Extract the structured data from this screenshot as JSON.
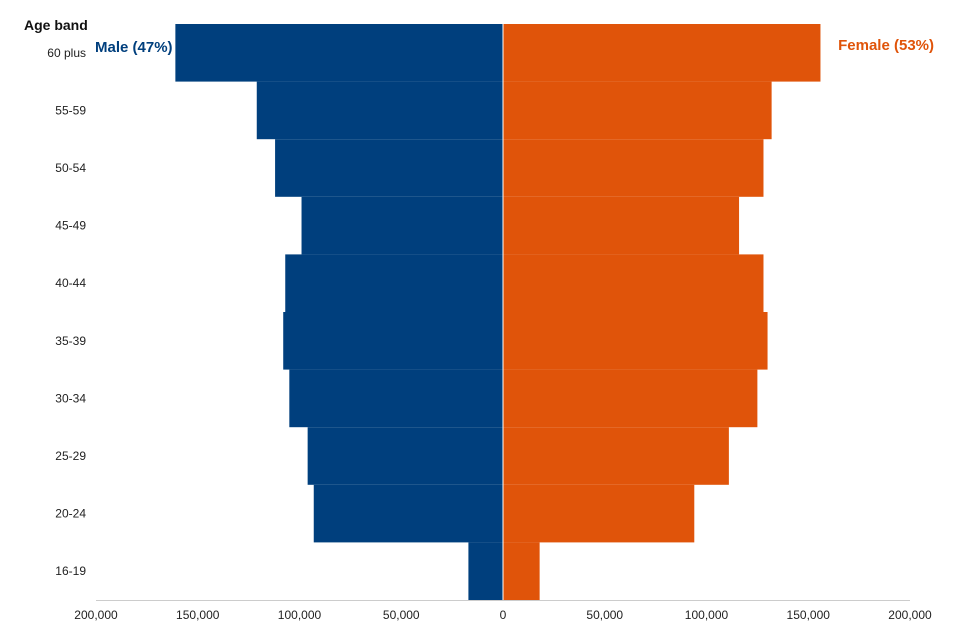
{
  "chart_data": {
    "type": "bar",
    "orientation": "horizontal",
    "subtype": "population-pyramid",
    "ylabel": "Age band",
    "categories": [
      "60 plus",
      "55-59",
      "50-54",
      "45-49",
      "40-44",
      "35-39",
      "30-34",
      "25-29",
      "20-24",
      "16-19"
    ],
    "series": [
      {
        "name": "Male (47%)",
        "side": "left",
        "color": "#003f7d",
        "values": [
          161000,
          121000,
          112000,
          99000,
          107000,
          108000,
          105000,
          96000,
          93000,
          17000
        ]
      },
      {
        "name": "Female (53%)",
        "side": "right",
        "color": "#e0540a",
        "values": [
          156000,
          132000,
          128000,
          116000,
          128000,
          130000,
          125000,
          111000,
          94000,
          18000
        ]
      }
    ],
    "xlim": [
      -200000,
      200000
    ],
    "xticks": [
      {
        "value": -200000,
        "label": "200,000"
      },
      {
        "value": -150000,
        "label": "150,000"
      },
      {
        "value": -100000,
        "label": "100,000"
      },
      {
        "value": -50000,
        "label": "50,000"
      },
      {
        "value": 0,
        "label": "0"
      },
      {
        "value": 50000,
        "label": "50,000"
      },
      {
        "value": 100000,
        "label": "100,000"
      },
      {
        "value": 150000,
        "label": "150,000"
      },
      {
        "value": 200000,
        "label": "200,000"
      }
    ],
    "grid": false,
    "legend": "top-corners"
  }
}
